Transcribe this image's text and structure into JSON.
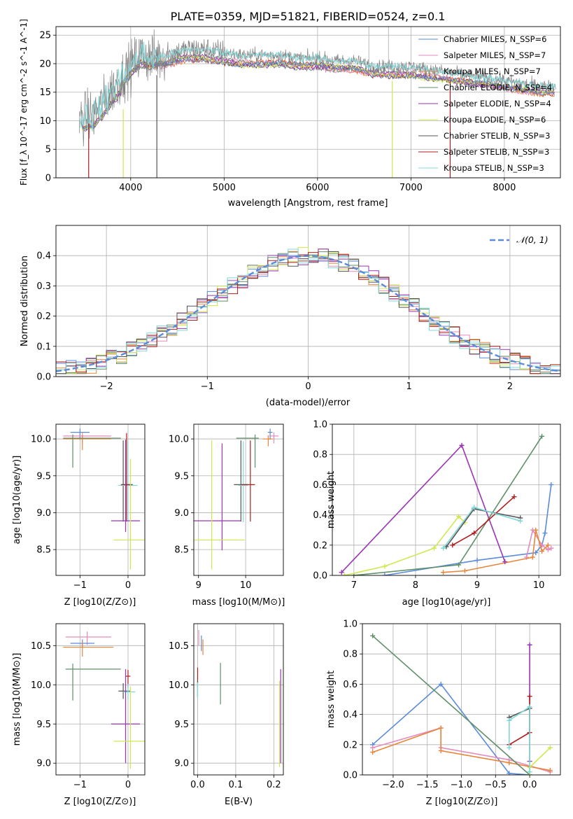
{
  "figure_title": "PLATE=0359, MJD=51821, FIBERID=0524, z=0.1",
  "colors": {
    "chabrier_miles": "#5b8bd9",
    "salpeter_miles": "#e58bbe",
    "kroupa_miles": "#e8853a",
    "chabrier_elodie": "#5f8f68",
    "salpeter_elodie": "#9a35b3",
    "kroupa_elodie": "#cfe84f",
    "chabrier_stelib": "#555555",
    "salpeter_stelib": "#b01d1d",
    "kroupa_stelib": "#7fd8d8",
    "grid": "#b0b0b0",
    "normal": "#5b8bd9",
    "spectrum": "#808080"
  },
  "chart_data": [
    {
      "id": "spectrum",
      "type": "line",
      "title": "PLATE=0359, MJD=51821, FIBERID=0524, z=0.1",
      "xlabel": "wavelength [Angstrom, rest frame]",
      "ylabel": "Flux [f_λ 10^-17 erg cm^-2 s^-1 A^-1]",
      "xlim": [
        3200,
        8600
      ],
      "ylim": [
        0,
        26.5
      ],
      "xticks": [
        4000,
        5000,
        6000,
        7000,
        8000
      ],
      "yticks": [
        0,
        5,
        10,
        15,
        20,
        25
      ],
      "legend_position": "top-right",
      "legend": [
        "Chabrier MILES, N_SSP=6",
        "Salpeter MILES, N_SSP=7",
        "Kroupa MILES, N_SSP=7",
        "Chabrier ELODIE, N_SSP=4",
        "Salpeter ELODIE, N_SSP=4",
        "Kroupa ELODIE, N_SSP=6",
        "Chabrier STELIB, N_SSP=3",
        "Salpeter STELIB, N_SSP=3",
        "Kroupa STELIB, N_SSP=3"
      ],
      "data_envelope": {
        "x": [
          3450,
          3600,
          3700,
          3800,
          3900,
          4000,
          4100,
          4200,
          4400,
          4600,
          4800,
          5000,
          5200,
          5400,
          5600,
          5800,
          6000,
          6200,
          6400,
          6600,
          6800,
          7000,
          7200,
          7400,
          7600,
          7800,
          8000,
          8200,
          8400,
          8550
        ],
        "y": [
          10.5,
          11,
          13,
          15.5,
          17.5,
          19.5,
          21.5,
          21,
          21.5,
          22.5,
          22.5,
          22,
          21.5,
          21.5,
          21.5,
          21,
          21,
          20.5,
          20.5,
          19.5,
          19.5,
          19.5,
          19,
          18.5,
          18,
          17.5,
          17,
          16.5,
          16,
          16
        ]
      }
    },
    {
      "id": "residuals",
      "type": "histogram",
      "xlabel": "(data-model)/error",
      "ylabel": "Normed distribution",
      "xlim": [
        -2.5,
        2.5
      ],
      "ylim": [
        0,
        0.5
      ],
      "xticks": [
        -2,
        -1,
        0,
        1,
        2
      ],
      "yticks": [
        0.0,
        0.1,
        0.2,
        0.3,
        0.4
      ],
      "legend": [
        "𝒩(0, 1)"
      ],
      "legend_position": "top-right",
      "bin_width": 0.1,
      "reference": "normal distribution mean 0 sigma 1"
    },
    {
      "id": "age_vs_Z",
      "type": "errorbar",
      "xlabel": "Z [log10(Z/Z⊙)]",
      "ylabel": "age [log10(age/yr)]",
      "xlim": [
        -1.5,
        0.35
      ],
      "ylim": [
        8.15,
        10.2
      ],
      "xticks": [
        -1,
        0
      ],
      "xticklabels": [
        "−1",
        "0"
      ],
      "yticks": [
        8.5,
        9.0,
        9.5,
        10.0
      ],
      "points": [
        {
          "s": "chabrier_miles",
          "x": -1.0,
          "xerr": [
            0.2,
            0.2
          ],
          "y": 10.09,
          "yerr": [
            0.1,
            0.05
          ]
        },
        {
          "s": "salpeter_miles",
          "x": -0.95,
          "xerr": [
            0.4,
            0.6
          ],
          "y": 10.04,
          "yerr": [
            0.1,
            0.05
          ]
        },
        {
          "s": "kroupa_miles",
          "x": -0.95,
          "xerr": [
            0.4,
            0.6
          ],
          "y": 10.0,
          "yerr": [
            0.15,
            0.05
          ]
        },
        {
          "s": "chabrier_elodie",
          "x": -1.15,
          "xerr": [
            0.2,
            1.0
          ],
          "y": 10.01,
          "yerr": [
            0.4,
            0.05
          ]
        },
        {
          "s": "chabrier_stelib",
          "x": -0.1,
          "xerr": [
            0.05,
            0.2
          ],
          "y": 9.38,
          "yerr": [
            0.5,
            0.6
          ]
        },
        {
          "s": "kroupa_stelib",
          "x": 0.0,
          "xerr": [
            0.2,
            0.2
          ],
          "y": 9.37,
          "yerr": [
            0.5,
            0.6
          ]
        },
        {
          "s": "salpeter_stelib",
          "x": -0.03,
          "xerr": [
            0.1,
            0.1
          ],
          "y": 9.38,
          "yerr": [
            0.5,
            0.7
          ]
        },
        {
          "s": "salpeter_elodie",
          "x": -0.05,
          "xerr": [
            0.3,
            0.3
          ],
          "y": 8.89,
          "yerr": [
            0.15,
            1.1
          ]
        },
        {
          "s": "kroupa_elodie",
          "x": 0.05,
          "xerr": [
            0.35,
            0.3
          ],
          "y": 8.63,
          "yerr": [
            0.4,
            1.1
          ]
        }
      ]
    },
    {
      "id": "age_vs_mass",
      "type": "errorbar",
      "xlabel": "mass [log10(M/M⊙)]",
      "ylabel": "",
      "xlim": [
        8.9,
        10.8
      ],
      "ylim": [
        8.15,
        10.2
      ],
      "xticks": [
        9,
        10
      ],
      "yticks": [
        8.5,
        9.0,
        9.5,
        10.0
      ],
      "points": [
        {
          "s": "chabrier_miles",
          "x": 10.52,
          "xerr": [
            0.05,
            0.05
          ],
          "y": 10.09,
          "yerr": [
            0.1,
            0.05
          ]
        },
        {
          "s": "salpeter_miles",
          "x": 10.6,
          "xerr": [
            0.1,
            0.1
          ],
          "y": 10.04,
          "yerr": [
            0.1,
            0.05
          ]
        },
        {
          "s": "kroupa_miles",
          "x": 10.48,
          "xerr": [
            0.12,
            0.1
          ],
          "y": 10.0,
          "yerr": [
            0.1,
            0.05
          ]
        },
        {
          "s": "chabrier_elodie",
          "x": 10.2,
          "xerr": [
            0.4,
            0.08
          ],
          "y": 10.01,
          "yerr": [
            0.4,
            0.05
          ]
        },
        {
          "s": "chabrier_stelib",
          "x": 9.9,
          "xerr": [
            0.15,
            0.15
          ],
          "y": 9.38,
          "yerr": [
            0.5,
            0.6
          ]
        },
        {
          "s": "kroupa_stelib",
          "x": 9.95,
          "xerr": [
            0.1,
            0.1
          ],
          "y": 9.37,
          "yerr": [
            0.5,
            0.6
          ]
        },
        {
          "s": "salpeter_stelib",
          "x": 10.1,
          "xerr": [
            0.2,
            0.1
          ],
          "y": 9.38,
          "yerr": [
            0.5,
            0.6
          ]
        },
        {
          "s": "salpeter_elodie",
          "x": 9.5,
          "xerr": [
            0.6,
            0.4
          ],
          "y": 8.89,
          "yerr": [
            0.4,
            1.05
          ]
        },
        {
          "s": "kroupa_elodie",
          "x": 9.28,
          "xerr": [
            0.5,
            0.7
          ],
          "y": 8.63,
          "yerr": [
            0.4,
            1.35
          ]
        }
      ]
    },
    {
      "id": "weight_vs_age",
      "type": "line",
      "xlabel": "age [log10(age/yr)]",
      "ylabel": "mass weight",
      "xlim": [
        6.65,
        10.35
      ],
      "ylim": [
        0,
        1.0
      ],
      "xticks": [
        7,
        8,
        9,
        10
      ],
      "yticks": [
        0.0,
        0.2,
        0.4,
        0.6,
        0.8,
        1.0
      ],
      "series": [
        {
          "s": "chabrier_miles",
          "x": [
            7.5,
            9.0,
            9.95,
            10.05,
            10.1,
            10.2
          ],
          "y": [
            0.0,
            0.1,
            0.15,
            0.2,
            0.28,
            0.6
          ]
        },
        {
          "s": "salpeter_miles",
          "x": [
            9.8,
            9.9,
            10.05,
            10.15,
            10.2
          ],
          "y": [
            0.12,
            0.3,
            0.2,
            0.17,
            0.18
          ]
        },
        {
          "s": "kroupa_miles",
          "x": [
            8.45,
            8.8,
            9.9,
            9.95,
            10.05,
            10.15
          ],
          "y": [
            0.02,
            0.03,
            0.12,
            0.3,
            0.16,
            0.2
          ]
        },
        {
          "s": "chabrier_elodie",
          "x": [
            7.0,
            8.7,
            10.05
          ],
          "y": [
            0.0,
            0.07,
            0.92
          ]
        },
        {
          "s": "salpeter_elodie",
          "x": [
            6.8,
            8.75,
            9.45
          ],
          "y": [
            0.02,
            0.86,
            0.09
          ]
        },
        {
          "s": "kroupa_elodie",
          "x": [
            6.85,
            7.5,
            8.3,
            8.7,
            8.8
          ],
          "y": [
            0.0,
            0.06,
            0.18,
            0.39,
            0.35
          ]
        },
        {
          "s": "chabrier_stelib",
          "x": [
            8.5,
            8.95,
            9.7
          ],
          "y": [
            0.19,
            0.44,
            0.38
          ]
        },
        {
          "s": "salpeter_stelib",
          "x": [
            8.6,
            8.95,
            9.6
          ],
          "y": [
            0.2,
            0.28,
            0.52
          ]
        },
        {
          "s": "kroupa_stelib",
          "x": [
            8.45,
            8.95,
            9.7
          ],
          "y": [
            0.18,
            0.45,
            0.36
          ]
        }
      ]
    },
    {
      "id": "mass_vs_Z",
      "type": "errorbar",
      "xlabel": "Z [log10(Z/Z⊙)]",
      "ylabel": "mass [log10(M/M⊙)]",
      "xlim": [
        -1.5,
        0.35
      ],
      "ylim": [
        8.85,
        10.78
      ],
      "xticks": [
        -1,
        0
      ],
      "xticklabels": [
        "−1",
        "0"
      ],
      "yticks": [
        9.0,
        9.5,
        10.0,
        10.5
      ],
      "points": [
        {
          "s": "salpeter_miles",
          "x": -0.85,
          "xerr": [
            0.45,
            0.5
          ],
          "y": 10.61,
          "yerr": [
            0.1,
            0.07
          ]
        },
        {
          "s": "chabrier_miles",
          "x": -0.95,
          "xerr": [
            0.25,
            0.25
          ],
          "y": 10.53,
          "yerr": [
            0.05,
            0.05
          ]
        },
        {
          "s": "kroupa_miles",
          "x": -0.95,
          "xerr": [
            0.4,
            0.65
          ],
          "y": 10.48,
          "yerr": [
            0.12,
            0.07
          ]
        },
        {
          "s": "chabrier_elodie",
          "x": -1.15,
          "xerr": [
            0.15,
            1.0
          ],
          "y": 10.2,
          "yerr": [
            0.4,
            0.07
          ]
        },
        {
          "s": "salpeter_stelib",
          "x": 0.0,
          "xerr": [
            0.05,
            0.05
          ],
          "y": 10.11,
          "yerr": [
            0.15,
            0.08
          ]
        },
        {
          "s": "chabrier_stelib",
          "x": -0.1,
          "xerr": [
            0.1,
            0.15
          ],
          "y": 9.92,
          "yerr": [
            0.1,
            0.1
          ]
        },
        {
          "s": "kroupa_stelib",
          "x": 0.0,
          "xerr": [
            0.1,
            0.15
          ],
          "y": 9.91,
          "yerr": [
            0.1,
            0.1
          ]
        },
        {
          "s": "salpeter_elodie",
          "x": -0.05,
          "xerr": [
            0.3,
            0.3
          ],
          "y": 9.5,
          "yerr": [
            0.5,
            0.7
          ]
        },
        {
          "s": "kroupa_elodie",
          "x": 0.05,
          "xerr": [
            0.35,
            0.3
          ],
          "y": 9.28,
          "yerr": [
            0.35,
            0.7
          ]
        }
      ]
    },
    {
      "id": "mass_vs_ebv",
      "type": "errorbar",
      "xlabel": "E(B-V)",
      "ylabel": "",
      "xlim": [
        -0.01,
        0.225
      ],
      "ylim": [
        8.85,
        10.78
      ],
      "xticks": [
        0.0,
        0.1,
        0.2
      ],
      "yticks": [
        9.0,
        9.5,
        10.0,
        10.5
      ],
      "points": [
        {
          "s": "salpeter_miles",
          "x": 0.003,
          "xerr": [
            0.0,
            0.0
          ],
          "y": 10.6,
          "yerr": [
            0.1,
            0.1
          ]
        },
        {
          "s": "chabrier_miles",
          "x": 0.01,
          "xerr": [
            0.0,
            0.0
          ],
          "y": 10.53,
          "yerr": [
            0.1,
            0.1
          ]
        },
        {
          "s": "kroupa_miles",
          "x": 0.014,
          "xerr": [
            0.0,
            0.0
          ],
          "y": 10.48,
          "yerr": [
            0.1,
            0.1
          ]
        },
        {
          "s": "salpeter_stelib",
          "x": 0.0,
          "xerr": [
            0.0,
            0.0
          ],
          "y": 10.12,
          "yerr": [
            0.1,
            0.1
          ]
        },
        {
          "s": "chabrier_stelib",
          "x": 0.0,
          "xerr": [
            0.0,
            0.0
          ],
          "y": 9.95,
          "yerr": [
            0.1,
            0.1
          ]
        },
        {
          "s": "kroupa_stelib",
          "x": 0.0,
          "xerr": [
            0.0,
            0.0
          ],
          "y": 9.93,
          "yerr": [
            0.1,
            0.1
          ]
        },
        {
          "s": "chabrier_elodie",
          "x": 0.06,
          "xerr": [
            0.0,
            0.0
          ],
          "y": 10.0,
          "yerr": [
            0.25,
            0.28
          ]
        },
        {
          "s": "salpeter_elodie",
          "x": 0.218,
          "xerr": [
            0.0,
            0.0
          ],
          "y": 9.6,
          "yerr": [
            0.6,
            0.6
          ]
        },
        {
          "s": "kroupa_elodie",
          "x": 0.215,
          "xerr": [
            0.0,
            0.0
          ],
          "y": 9.5,
          "yerr": [
            0.55,
            0.55
          ]
        }
      ]
    },
    {
      "id": "weight_vs_Z",
      "type": "line",
      "xlabel": "Z [log10(Z/Z⊙)]",
      "ylabel": "mass weight",
      "xlim": [
        -2.45,
        0.45
      ],
      "ylim": [
        0,
        1.0
      ],
      "xticks": [
        -2.0,
        -1.5,
        -1.0,
        -0.5,
        0.0
      ],
      "xticklabels": [
        "−2.0",
        "−1.5",
        "−1.0",
        "−0.5",
        "0.0"
      ],
      "yticks": [
        0.0,
        0.2,
        0.4,
        0.6,
        0.8,
        1.0
      ],
      "series": [
        {
          "s": "chabrier_miles",
          "x": [
            -2.3,
            -1.3,
            -0.3,
            0.0
          ],
          "y": [
            0.2,
            0.6,
            0.01,
            0.0
          ]
        },
        {
          "s": "salpeter_miles",
          "x": [
            -2.3,
            -1.3,
            -1.3,
            -0.3,
            0.3
          ],
          "y": [
            0.18,
            0.31,
            0.18,
            0.1,
            0.02
          ]
        },
        {
          "s": "kroupa_miles",
          "x": [
            -2.3,
            -1.3,
            -1.3,
            -0.3,
            0.3
          ],
          "y": [
            0.15,
            0.31,
            0.16,
            0.08,
            0.03
          ]
        },
        {
          "s": "chabrier_elodie",
          "x": [
            -2.3,
            0.0
          ],
          "y": [
            0.92,
            0.0
          ]
        },
        {
          "s": "salpeter_elodie",
          "x": [
            0.0,
            0.0
          ],
          "y": [
            0.86,
            0.09
          ]
        },
        {
          "s": "kroupa_elodie",
          "x": [
            0.0,
            0.0,
            0.3
          ],
          "y": [
            0.0,
            0.05,
            0.18
          ]
        },
        {
          "s": "chabrier_stelib",
          "x": [
            -0.3,
            0.0
          ],
          "y": [
            0.38,
            0.44
          ]
        },
        {
          "s": "salpeter_stelib",
          "x": [
            -0.3,
            0.0,
            0.0
          ],
          "y": [
            0.2,
            0.28,
            0.52
          ]
        },
        {
          "s": "kroupa_stelib",
          "x": [
            -0.3,
            -0.3,
            0.0,
            0.0
          ],
          "y": [
            0.18,
            0.36,
            0.45,
            0.02
          ]
        }
      ]
    }
  ]
}
